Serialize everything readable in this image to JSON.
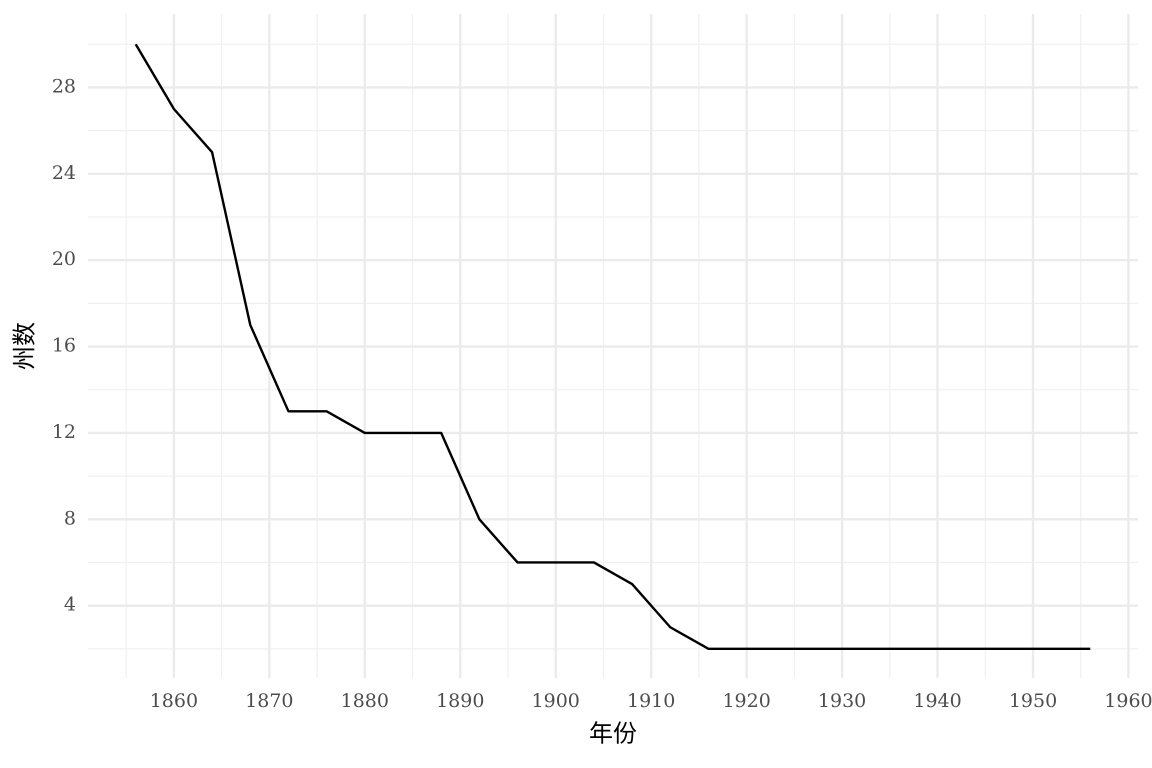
{
  "chart_data": {
    "type": "line",
    "x_label": "年份",
    "y_label": "州数",
    "x": [
      1856,
      1860,
      1864,
      1868,
      1872,
      1876,
      1880,
      1884,
      1888,
      1892,
      1896,
      1900,
      1904,
      1908,
      1912,
      1916,
      1920,
      1924,
      1928,
      1932,
      1936,
      1940,
      1944,
      1948,
      1952,
      1956
    ],
    "series": [
      {
        "color": "#000000",
        "values": [
          30,
          27,
          25,
          17,
          13,
          13,
          12,
          12,
          12,
          8,
          6,
          6,
          6,
          5,
          3,
          2,
          2,
          2,
          2,
          2,
          2,
          2,
          2,
          2,
          2,
          2
        ]
      }
    ],
    "xlim": [
      1851,
      1961
    ],
    "xticks": [
      1860,
      1870,
      1880,
      1890,
      1900,
      1910,
      1920,
      1930,
      1940,
      1950,
      1960
    ],
    "ylim": [
      0.65,
      31.4
    ],
    "yticks": [
      4,
      8,
      12,
      16,
      20,
      24,
      28
    ],
    "grid": true
  }
}
